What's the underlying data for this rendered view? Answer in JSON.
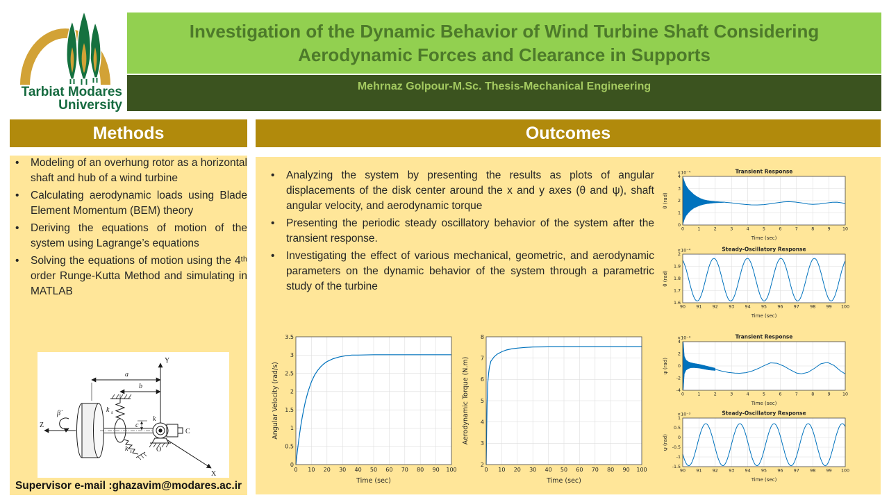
{
  "header": {
    "logo_line1": "Tarbiat Modares",
    "logo_line2": "University",
    "title": "Investigation of the Dynamic Behavior of Wind Turbine Shaft Considering Aerodynamic Forces and Clearance in Supports",
    "subtitle": "Mehrnaz Golpour-M.Sc. Thesis-Mechanical Engineering"
  },
  "methods": {
    "heading": "Methods",
    "bullets": [
      "Modeling of an overhung rotor as a horizontal shaft and hub of a wind turbine",
      "Calculating aerodynamic loads using Blade Element Momentum (BEM) theory",
      "Deriving the equations of motion of the system using Lagrange’s equations",
      "Solving the equations of motion using the 4ᵗʰ order Runge-Kutta Method and simulating in MATLAB"
    ],
    "supervisor": "Supervisor e-mail :ghazavim@modares.ac.ir",
    "figure_labels": {
      "y_axis": "Y",
      "x_axis": "X",
      "z_axis": "Z",
      "beta": "β̇",
      "dim_a": "a",
      "dim_b": "b",
      "clearance": "c",
      "stiffness_k": "k",
      "spring_k": "k",
      "spring_sub": "s",
      "point_c": "C",
      "origin": "O"
    }
  },
  "outcomes": {
    "heading": "Outcomes",
    "bullets": [
      "Analyzing the system by presenting the results as plots of angular displacements of the disk center around the x and y axes (θ and ψ), shaft angular velocity, and aerodynamic torque",
      "Presenting the periodic steady oscillatory behavior of the system after the transient response.",
      "Investigating the effect of various mechanical, geometric, and aerodynamic parameters on the dynamic behavior of the system through a parametric study of the turbine"
    ]
  },
  "colors": {
    "title_bg": "#92d050",
    "title_text": "#4d7a2a",
    "subtitle_bg": "#3b531f",
    "subtitle_text": "#a3c960",
    "section_header_bg": "#b18a0c",
    "panel_bg": "#ffe699",
    "line_blue": "#0072bd",
    "logo_gold": "#d2a236",
    "logo_green": "#15713f"
  },
  "chart_data": [
    {
      "id": "angular-velocity",
      "size": "big",
      "type": "line",
      "title": "",
      "xlabel": "Time (sec)",
      "ylabel": "Angular Velocity (rad/s)",
      "exp_label": "",
      "xlim": [
        0,
        100
      ],
      "ylim": [
        0,
        3.5
      ],
      "grid": true,
      "legend": "none",
      "xticks": [
        0,
        10,
        20,
        30,
        40,
        50,
        60,
        70,
        80,
        90,
        100
      ],
      "yticks": [
        0,
        0.5,
        1,
        1.5,
        2,
        2.5,
        3,
        3.5
      ],
      "series": [
        {
          "kind": "points",
          "x": [
            0,
            1,
            2,
            3,
            4,
            5,
            6,
            7,
            8,
            10,
            12,
            14,
            16,
            18,
            20,
            24,
            28,
            32,
            36,
            40,
            50,
            60,
            70,
            80,
            90,
            100
          ],
          "y": [
            0,
            0.38,
            0.72,
            1.02,
            1.28,
            1.5,
            1.7,
            1.87,
            2.02,
            2.27,
            2.45,
            2.58,
            2.68,
            2.76,
            2.82,
            2.9,
            2.95,
            2.98,
            3,
            3,
            3.01,
            3.01,
            3.01,
            3.01,
            3.01,
            3.01
          ]
        }
      ]
    },
    {
      "id": "aerodynamic-torque",
      "size": "big",
      "type": "line",
      "title": "",
      "xlabel": "Time (sec)",
      "ylabel": "Aerodynamic Torque (N.m)",
      "exp_label": "",
      "xlim": [
        0,
        100
      ],
      "ylim": [
        2,
        8
      ],
      "grid": true,
      "legend": "none",
      "xticks": [
        0,
        10,
        20,
        30,
        40,
        50,
        60,
        70,
        80,
        90,
        100
      ],
      "yticks": [
        2,
        3,
        4,
        5,
        6,
        7,
        8
      ],
      "series": [
        {
          "kind": "points",
          "x": [
            0,
            0.3,
            0.6,
            1,
            1.5,
            2,
            3,
            4,
            5,
            7,
            10,
            13,
            16,
            20,
            25,
            30,
            40,
            50,
            60,
            70,
            80,
            90,
            100
          ],
          "y": [
            2,
            3.6,
            4.8,
            5.8,
            6.25,
            6.55,
            6.85,
            6.95,
            7.05,
            7.18,
            7.3,
            7.38,
            7.43,
            7.47,
            7.5,
            7.52,
            7.53,
            7.53,
            7.53,
            7.53,
            7.53,
            7.53,
            7.53
          ]
        }
      ]
    },
    {
      "id": "theta-transient",
      "size": "small",
      "type": "line",
      "title": "Transient Response",
      "xlabel": "Time (sec)",
      "ylabel": "θ (rad)",
      "exp_label": "×10⁻⁴",
      "xlim": [
        0,
        10
      ],
      "ylim": [
        0,
        4
      ],
      "grid": true,
      "legend": "none",
      "xticks": [
        0,
        1,
        2,
        3,
        4,
        5,
        6,
        7,
        8,
        9,
        10
      ],
      "yticks": [
        0,
        1,
        2,
        3,
        4
      ],
      "series": [
        {
          "kind": "band",
          "x": [
            0,
            0.1,
            0.2,
            0.35,
            0.5,
            0.7,
            0.9,
            1.1,
            1.3,
            1.5,
            1.75,
            2,
            2.3,
            2.6
          ],
          "upper": [
            4,
            3.6,
            3.25,
            2.95,
            2.75,
            2.5,
            2.32,
            2.18,
            2.08,
            2.02,
            1.97,
            1.94,
            1.91,
            1.89
          ],
          "lower": [
            0.02,
            0.45,
            0.75,
            1,
            1.2,
            1.4,
            1.52,
            1.62,
            1.7,
            1.75,
            1.79,
            1.82,
            1.84,
            1.86
          ]
        },
        {
          "kind": "points",
          "x": [
            2.6,
            3,
            3.4,
            3.8,
            4.2,
            4.6,
            5,
            5.4,
            5.8,
            6.2,
            6.5,
            6.9,
            7.3,
            7.7,
            8,
            8.4,
            8.8,
            9.2,
            9.5,
            9.8,
            10
          ],
          "y": [
            1.87,
            1.82,
            1.75,
            1.7,
            1.66,
            1.65,
            1.68,
            1.75,
            1.83,
            1.9,
            1.92,
            1.89,
            1.82,
            1.73,
            1.7,
            1.73,
            1.8,
            1.87,
            1.88,
            1.82,
            1.75
          ]
        }
      ]
    },
    {
      "id": "theta-steady",
      "size": "small",
      "type": "line",
      "title": "Steady-Oscillatory Response",
      "xlabel": "Time (sec)",
      "ylabel": "θ (rad)",
      "exp_label": "×10⁻⁴",
      "xlim": [
        90,
        100
      ],
      "ylim": [
        1.6,
        2
      ],
      "grid": true,
      "legend": "none",
      "xticks": [
        90,
        91,
        92,
        93,
        94,
        95,
        96,
        97,
        98,
        99,
        100
      ],
      "yticks": [
        1.6,
        1.7,
        1.8,
        1.9,
        2
      ],
      "series": [
        {
          "kind": "sine",
          "x0": 90,
          "x1": 100,
          "n": 400,
          "mean": 1.79,
          "amp": 0.175,
          "period": 2.06,
          "xpeak": 91.92
        }
      ]
    },
    {
      "id": "psi-transient",
      "size": "small",
      "type": "line",
      "title": "Transient Response",
      "xlabel": "Time (sec)",
      "ylabel": "ψ (rad)",
      "exp_label": "×10⁻³",
      "xlim": [
        0,
        10
      ],
      "ylim": [
        -4,
        4
      ],
      "grid": true,
      "legend": "none",
      "xticks": [
        0,
        1,
        2,
        3,
        4,
        5,
        6,
        7,
        8,
        9,
        10
      ],
      "yticks": [
        -4,
        -2,
        0,
        2,
        4
      ],
      "series": [
        {
          "kind": "band",
          "x": [
            0,
            0.04,
            0.1,
            0.2,
            0.35,
            0.5,
            0.7,
            1,
            1.3,
            1.6,
            2
          ],
          "upper": [
            4,
            3.9,
            1.6,
            1,
            0.7,
            0.55,
            0.42,
            0.28,
            0.1,
            -0.1,
            -0.35
          ],
          "lower": [
            -4,
            -3.9,
            -1.3,
            -0.7,
            -0.45,
            -0.3,
            -0.28,
            -0.35,
            -0.5,
            -0.65,
            -0.75
          ]
        },
        {
          "kind": "points",
          "x": [
            2,
            2.4,
            2.8,
            3.2,
            3.5,
            3.9,
            4.3,
            4.7,
            5,
            5.4,
            5.8,
            6.2,
            6.6,
            7,
            7.3,
            7.7,
            8.1,
            8.5,
            8.9,
            9.3,
            9.7,
            10
          ],
          "y": [
            -0.55,
            -0.85,
            -1.05,
            -1.18,
            -1.2,
            -1.1,
            -0.8,
            -0.35,
            0.05,
            0.52,
            0.45,
            0,
            -0.6,
            -1.15,
            -1.3,
            -1.05,
            -0.4,
            0.35,
            0.6,
            0.1,
            -0.8,
            -1.3
          ]
        }
      ]
    },
    {
      "id": "psi-steady",
      "size": "small",
      "type": "line",
      "title": "Steady-Oscillatory Response",
      "xlabel": "Time (sec)",
      "ylabel": "ψ (rad)",
      "exp_label": "×10⁻³",
      "xlim": [
        90,
        100
      ],
      "ylim": [
        -1.5,
        1
      ],
      "grid": true,
      "legend": "none",
      "xticks": [
        90,
        91,
        92,
        93,
        94,
        95,
        96,
        97,
        98,
        99,
        100
      ],
      "yticks": [
        -1.5,
        -1,
        -0.5,
        0,
        0.5,
        1
      ],
      "series": [
        {
          "kind": "sine",
          "x0": 90,
          "x1": 100,
          "n": 400,
          "mean": -0.37,
          "amp": 1.08,
          "period": 2.1,
          "xpeak": 91.42
        }
      ]
    }
  ]
}
